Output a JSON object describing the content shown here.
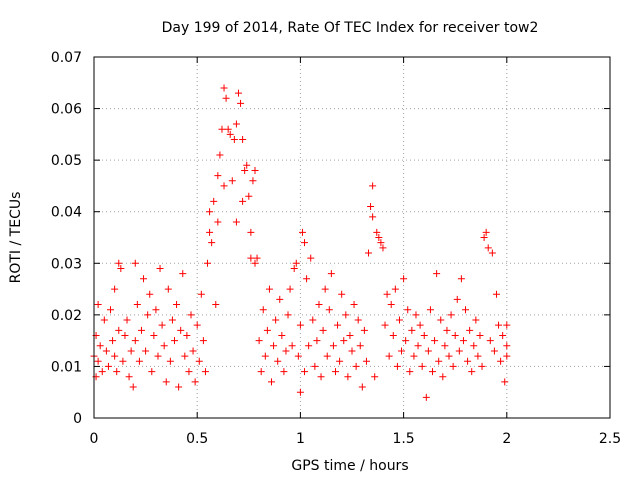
{
  "chart_data": {
    "type": "scatter",
    "title": "Day 199 of 2014, Rate Of TEC Index for receiver tow2",
    "xlabel": "GPS time / hours",
    "ylabel": "ROTI / TECUs",
    "xlim": [
      0,
      2.5
    ],
    "ylim": [
      0,
      0.07
    ],
    "xticks": [
      0,
      0.5,
      1,
      1.5,
      2,
      2.5
    ],
    "xtick_labels": [
      "0",
      "0.5",
      "1",
      "1.5",
      "2",
      "2.5"
    ],
    "yticks": [
      0,
      0.01,
      0.02,
      0.03,
      0.04,
      0.05,
      0.06,
      0.07
    ],
    "ytick_labels": [
      "0",
      "0.01",
      "0.02",
      "0.03",
      "0.04",
      "0.05",
      "0.06",
      "0.07"
    ],
    "grid": true,
    "marker": "+",
    "color": "#ff0000",
    "series": [
      {
        "name": "ROTI",
        "points": [
          [
            0.0,
            0.012
          ],
          [
            0.01,
            0.008
          ],
          [
            0.01,
            0.016
          ],
          [
            0.02,
            0.022
          ],
          [
            0.02,
            0.011
          ],
          [
            0.03,
            0.014
          ],
          [
            0.04,
            0.009
          ],
          [
            0.05,
            0.019
          ],
          [
            0.06,
            0.013
          ],
          [
            0.07,
            0.01
          ],
          [
            0.08,
            0.021
          ],
          [
            0.09,
            0.015
          ],
          [
            0.1,
            0.012
          ],
          [
            0.1,
            0.025
          ],
          [
            0.11,
            0.009
          ],
          [
            0.12,
            0.03
          ],
          [
            0.12,
            0.017
          ],
          [
            0.13,
            0.029
          ],
          [
            0.14,
            0.011
          ],
          [
            0.15,
            0.016
          ],
          [
            0.16,
            0.019
          ],
          [
            0.17,
            0.008
          ],
          [
            0.18,
            0.013
          ],
          [
            0.19,
            0.006
          ],
          [
            0.2,
            0.03
          ],
          [
            0.2,
            0.015
          ],
          [
            0.21,
            0.022
          ],
          [
            0.22,
            0.011
          ],
          [
            0.23,
            0.017
          ],
          [
            0.24,
            0.027
          ],
          [
            0.25,
            0.013
          ],
          [
            0.26,
            0.02
          ],
          [
            0.27,
            0.024
          ],
          [
            0.28,
            0.009
          ],
          [
            0.29,
            0.016
          ],
          [
            0.3,
            0.021
          ],
          [
            0.31,
            0.012
          ],
          [
            0.32,
            0.029
          ],
          [
            0.33,
            0.018
          ],
          [
            0.34,
            0.014
          ],
          [
            0.35,
            0.007
          ],
          [
            0.36,
            0.025
          ],
          [
            0.37,
            0.011
          ],
          [
            0.38,
            0.019
          ],
          [
            0.39,
            0.015
          ],
          [
            0.4,
            0.022
          ],
          [
            0.41,
            0.006
          ],
          [
            0.42,
            0.017
          ],
          [
            0.43,
            0.028
          ],
          [
            0.44,
            0.012
          ],
          [
            0.45,
            0.016
          ],
          [
            0.46,
            0.009
          ],
          [
            0.47,
            0.02
          ],
          [
            0.48,
            0.013
          ],
          [
            0.49,
            0.007
          ],
          [
            0.5,
            0.018
          ],
          [
            0.51,
            0.011
          ],
          [
            0.52,
            0.024
          ],
          [
            0.53,
            0.015
          ],
          [
            0.54,
            0.009
          ],
          [
            0.55,
            0.03
          ],
          [
            0.56,
            0.036
          ],
          [
            0.56,
            0.04
          ],
          [
            0.57,
            0.034
          ],
          [
            0.58,
            0.042
          ],
          [
            0.59,
            0.022
          ],
          [
            0.6,
            0.047
          ],
          [
            0.6,
            0.038
          ],
          [
            0.61,
            0.051
          ],
          [
            0.62,
            0.056
          ],
          [
            0.63,
            0.064
          ],
          [
            0.63,
            0.045
          ],
          [
            0.64,
            0.062
          ],
          [
            0.65,
            0.056
          ],
          [
            0.66,
            0.055
          ],
          [
            0.67,
            0.046
          ],
          [
            0.68,
            0.054
          ],
          [
            0.69,
            0.057
          ],
          [
            0.69,
            0.038
          ],
          [
            0.7,
            0.063
          ],
          [
            0.71,
            0.061
          ],
          [
            0.72,
            0.042
          ],
          [
            0.72,
            0.054
          ],
          [
            0.73,
            0.048
          ],
          [
            0.74,
            0.049
          ],
          [
            0.75,
            0.043
          ],
          [
            0.76,
            0.031
          ],
          [
            0.76,
            0.036
          ],
          [
            0.77,
            0.046
          ],
          [
            0.78,
            0.048
          ],
          [
            0.78,
            0.03
          ],
          [
            0.79,
            0.031
          ],
          [
            0.8,
            0.015
          ],
          [
            0.81,
            0.009
          ],
          [
            0.82,
            0.021
          ],
          [
            0.83,
            0.012
          ],
          [
            0.84,
            0.017
          ],
          [
            0.85,
            0.025
          ],
          [
            0.86,
            0.007
          ],
          [
            0.87,
            0.014
          ],
          [
            0.88,
            0.019
          ],
          [
            0.89,
            0.011
          ],
          [
            0.9,
            0.023
          ],
          [
            0.91,
            0.016
          ],
          [
            0.92,
            0.009
          ],
          [
            0.93,
            0.013
          ],
          [
            0.94,
            0.02
          ],
          [
            0.95,
            0.025
          ],
          [
            0.96,
            0.014
          ],
          [
            0.97,
            0.029
          ],
          [
            0.98,
            0.03
          ],
          [
            0.99,
            0.012
          ],
          [
            1.0,
            0.018
          ],
          [
            1.0,
            0.005
          ],
          [
            1.01,
            0.036
          ],
          [
            1.02,
            0.034
          ],
          [
            1.02,
            0.009
          ],
          [
            1.03,
            0.027
          ],
          [
            1.04,
            0.014
          ],
          [
            1.05,
            0.031
          ],
          [
            1.06,
            0.019
          ],
          [
            1.07,
            0.01
          ],
          [
            1.08,
            0.015
          ],
          [
            1.09,
            0.022
          ],
          [
            1.1,
            0.008
          ],
          [
            1.11,
            0.017
          ],
          [
            1.12,
            0.025
          ],
          [
            1.13,
            0.012
          ],
          [
            1.14,
            0.021
          ],
          [
            1.15,
            0.028
          ],
          [
            1.16,
            0.014
          ],
          [
            1.17,
            0.009
          ],
          [
            1.18,
            0.018
          ],
          [
            1.19,
            0.011
          ],
          [
            1.2,
            0.024
          ],
          [
            1.21,
            0.015
          ],
          [
            1.22,
            0.02
          ],
          [
            1.23,
            0.008
          ],
          [
            1.24,
            0.016
          ],
          [
            1.25,
            0.013
          ],
          [
            1.26,
            0.022
          ],
          [
            1.27,
            0.01
          ],
          [
            1.28,
            0.019
          ],
          [
            1.29,
            0.014
          ],
          [
            1.3,
            0.006
          ],
          [
            1.31,
            0.017
          ],
          [
            1.32,
            0.011
          ],
          [
            1.33,
            0.032
          ],
          [
            1.34,
            0.041
          ],
          [
            1.35,
            0.045
          ],
          [
            1.35,
            0.039
          ],
          [
            1.36,
            0.008
          ],
          [
            1.37,
            0.036
          ],
          [
            1.38,
            0.035
          ],
          [
            1.39,
            0.034
          ],
          [
            1.4,
            0.033
          ],
          [
            1.41,
            0.018
          ],
          [
            1.42,
            0.024
          ],
          [
            1.43,
            0.012
          ],
          [
            1.44,
            0.022
          ],
          [
            1.45,
            0.016
          ],
          [
            1.46,
            0.025
          ],
          [
            1.47,
            0.01
          ],
          [
            1.48,
            0.019
          ],
          [
            1.49,
            0.013
          ],
          [
            1.5,
            0.027
          ],
          [
            1.51,
            0.015
          ],
          [
            1.52,
            0.021
          ],
          [
            1.53,
            0.009
          ],
          [
            1.54,
            0.017
          ],
          [
            1.55,
            0.012
          ],
          [
            1.56,
            0.02
          ],
          [
            1.57,
            0.014
          ],
          [
            1.58,
            0.018
          ],
          [
            1.59,
            0.01
          ],
          [
            1.6,
            0.016
          ],
          [
            1.61,
            0.004
          ],
          [
            1.62,
            0.013
          ],
          [
            1.63,
            0.021
          ],
          [
            1.64,
            0.009
          ],
          [
            1.65,
            0.015
          ],
          [
            1.66,
            0.028
          ],
          [
            1.67,
            0.011
          ],
          [
            1.68,
            0.019
          ],
          [
            1.69,
            0.008
          ],
          [
            1.7,
            0.014
          ],
          [
            1.71,
            0.017
          ],
          [
            1.72,
            0.012
          ],
          [
            1.73,
            0.02
          ],
          [
            1.74,
            0.01
          ],
          [
            1.75,
            0.016
          ],
          [
            1.76,
            0.023
          ],
          [
            1.77,
            0.013
          ],
          [
            1.78,
            0.027
          ],
          [
            1.79,
            0.015
          ],
          [
            1.8,
            0.021
          ],
          [
            1.81,
            0.011
          ],
          [
            1.82,
            0.017
          ],
          [
            1.83,
            0.009
          ],
          [
            1.84,
            0.014
          ],
          [
            1.85,
            0.019
          ],
          [
            1.86,
            0.012
          ],
          [
            1.87,
            0.016
          ],
          [
            1.88,
            0.01
          ],
          [
            1.89,
            0.035
          ],
          [
            1.9,
            0.036
          ],
          [
            1.91,
            0.033
          ],
          [
            1.92,
            0.015
          ],
          [
            1.93,
            0.032
          ],
          [
            1.94,
            0.013
          ],
          [
            1.95,
            0.024
          ],
          [
            1.96,
            0.018
          ],
          [
            1.97,
            0.011
          ],
          [
            1.98,
            0.016
          ],
          [
            1.99,
            0.007
          ],
          [
            2.0,
            0.014
          ],
          [
            2.0,
            0.018
          ],
          [
            2.0,
            0.012
          ]
        ]
      }
    ]
  }
}
